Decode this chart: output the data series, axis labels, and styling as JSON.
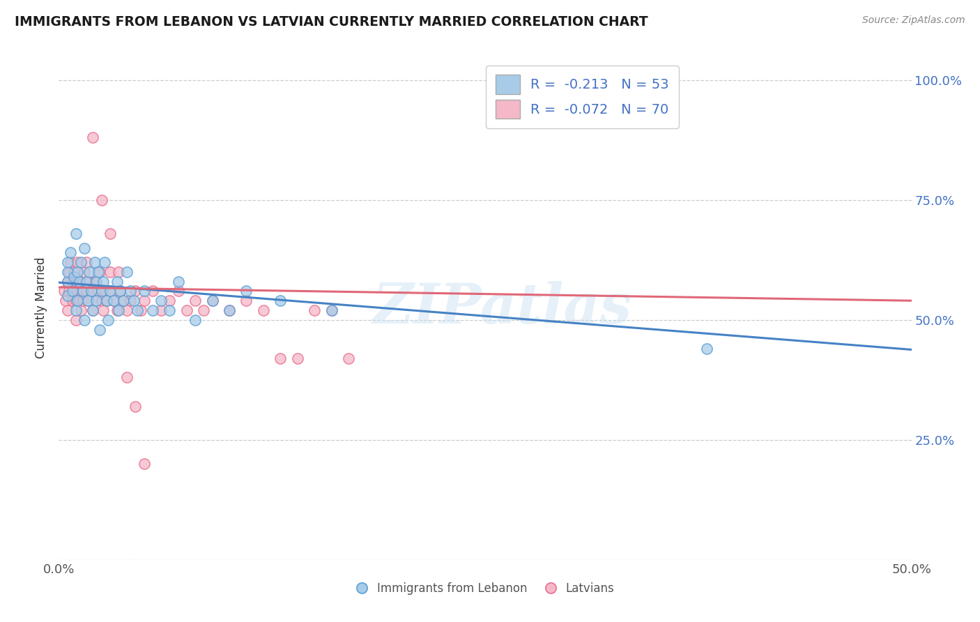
{
  "title": "IMMIGRANTS FROM LEBANON VS LATVIAN CURRENTLY MARRIED CORRELATION CHART",
  "source": "Source: ZipAtlas.com",
  "ylabel": "Currently Married",
  "xlim": [
    0.0,
    0.5
  ],
  "ylim": [
    0.0,
    1.05
  ],
  "ytick_labels": [
    "",
    "25.0%",
    "50.0%",
    "75.0%",
    "100.0%"
  ],
  "ytick_values": [
    0.0,
    0.25,
    0.5,
    0.75,
    1.0
  ],
  "xtick_labels": [
    "0.0%",
    "50.0%"
  ],
  "xtick_values": [
    0.0,
    0.5
  ],
  "legend1_label": "R =  -0.213   N = 53",
  "legend2_label": "R =  -0.072   N = 70",
  "legend_bottom_label1": "Immigrants from Lebanon",
  "legend_bottom_label2": "Latvians",
  "blue_color": "#a8cce8",
  "pink_color": "#f4b8c8",
  "blue_edge_color": "#5a9fd4",
  "pink_edge_color": "#e87090",
  "blue_line_color": "#4682c4",
  "pink_line_color": "#e06878",
  "watermark": "ZIPatlas",
  "blue_scatter_x": [
    0.005,
    0.005,
    0.005,
    0.005,
    0.007,
    0.008,
    0.009,
    0.01,
    0.01,
    0.011,
    0.011,
    0.012,
    0.013,
    0.014,
    0.015,
    0.015,
    0.016,
    0.017,
    0.018,
    0.019,
    0.02,
    0.021,
    0.022,
    0.022,
    0.023,
    0.024,
    0.025,
    0.026,
    0.027,
    0.028,
    0.029,
    0.03,
    0.032,
    0.034,
    0.035,
    0.036,
    0.038,
    0.04,
    0.042,
    0.044,
    0.046,
    0.05,
    0.055,
    0.06,
    0.065,
    0.07,
    0.08,
    0.09,
    0.1,
    0.11,
    0.13,
    0.16,
    0.38
  ],
  "blue_scatter_y": [
    0.58,
    0.6,
    0.62,
    0.55,
    0.64,
    0.56,
    0.59,
    0.68,
    0.52,
    0.6,
    0.54,
    0.58,
    0.62,
    0.56,
    0.65,
    0.5,
    0.58,
    0.54,
    0.6,
    0.56,
    0.52,
    0.62,
    0.58,
    0.54,
    0.6,
    0.48,
    0.56,
    0.58,
    0.62,
    0.54,
    0.5,
    0.56,
    0.54,
    0.58,
    0.52,
    0.56,
    0.54,
    0.6,
    0.56,
    0.54,
    0.52,
    0.56,
    0.52,
    0.54,
    0.52,
    0.58,
    0.5,
    0.54,
    0.52,
    0.56,
    0.54,
    0.52,
    0.44
  ],
  "pink_scatter_x": [
    0.003,
    0.004,
    0.005,
    0.005,
    0.006,
    0.006,
    0.007,
    0.008,
    0.008,
    0.009,
    0.009,
    0.01,
    0.01,
    0.01,
    0.011,
    0.011,
    0.012,
    0.012,
    0.013,
    0.013,
    0.014,
    0.015,
    0.016,
    0.016,
    0.017,
    0.018,
    0.019,
    0.02,
    0.021,
    0.022,
    0.023,
    0.024,
    0.025,
    0.026,
    0.027,
    0.028,
    0.03,
    0.03,
    0.032,
    0.034,
    0.036,
    0.038,
    0.04,
    0.042,
    0.045,
    0.048,
    0.05,
    0.055,
    0.06,
    0.065,
    0.07,
    0.075,
    0.08,
    0.085,
    0.09,
    0.1,
    0.11,
    0.12,
    0.13,
    0.14,
    0.15,
    0.16,
    0.17,
    0.02,
    0.025,
    0.03,
    0.035,
    0.04,
    0.045,
    0.05
  ],
  "pink_scatter_y": [
    0.56,
    0.54,
    0.58,
    0.52,
    0.6,
    0.56,
    0.62,
    0.54,
    0.58,
    0.56,
    0.6,
    0.5,
    0.54,
    0.58,
    0.62,
    0.56,
    0.54,
    0.58,
    0.52,
    0.56,
    0.54,
    0.6,
    0.56,
    0.62,
    0.54,
    0.58,
    0.56,
    0.52,
    0.58,
    0.54,
    0.56,
    0.6,
    0.54,
    0.52,
    0.56,
    0.54,
    0.56,
    0.6,
    0.54,
    0.52,
    0.56,
    0.54,
    0.52,
    0.54,
    0.56,
    0.52,
    0.54,
    0.56,
    0.52,
    0.54,
    0.56,
    0.52,
    0.54,
    0.52,
    0.54,
    0.52,
    0.54,
    0.52,
    0.42,
    0.42,
    0.52,
    0.52,
    0.42,
    0.88,
    0.75,
    0.68,
    0.6,
    0.38,
    0.32,
    0.2
  ]
}
